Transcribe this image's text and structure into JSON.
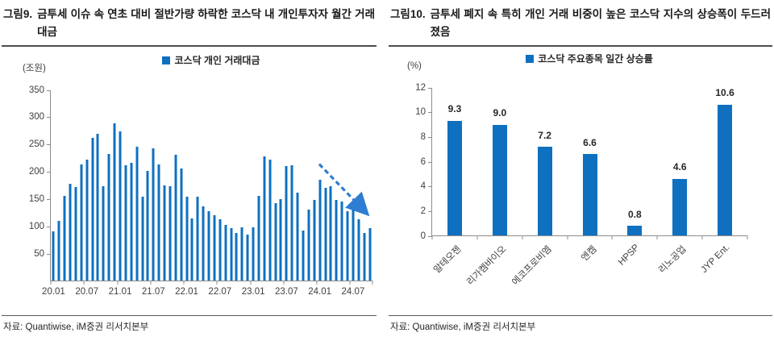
{
  "panels": [
    {
      "title_label": "그림9.",
      "title_text": "금투세 이슈 속 연초 대비 절반가량 하락한 코스닥 내 개인투자자 월간 거래대금",
      "source": "자료: Quantiwise, iM증권 리서치본부"
    },
    {
      "title_label": "그림10.",
      "title_text": "금투세 폐지 속 특히 개인 거래 비중이 높은 코스닥 지수의 상승폭이 두드러졌음",
      "source": "자료: Quantiwise, iM증권 리서치본부"
    }
  ],
  "chart_data": [
    {
      "type": "bar",
      "title": "코스닥 개인 거래대금",
      "legend": "코스닥 개인 거래대금",
      "legend_position": "top-center",
      "unit": "(조원)",
      "ylabel": "(조원)",
      "ylim": [
        0,
        350
      ],
      "yticks": [
        350,
        300,
        250,
        200,
        150,
        100,
        50
      ],
      "grid": false,
      "bar_color": "#0F70C0",
      "arrow_color": "#2E7DD2",
      "annotation": "dashed-decline-arrow",
      "xtick_every": 6,
      "xtick_labels": [
        "20.01",
        "20.07",
        "21.01",
        "21.07",
        "22.01",
        "22.07",
        "23.01",
        "23.07",
        "24.01",
        "24.07"
      ],
      "x": [
        "20.01",
        "20.02",
        "20.03",
        "20.04",
        "20.05",
        "20.06",
        "20.07",
        "20.08",
        "20.09",
        "20.10",
        "20.11",
        "20.12",
        "21.01",
        "21.02",
        "21.03",
        "21.04",
        "21.05",
        "21.06",
        "21.07",
        "21.08",
        "21.09",
        "21.10",
        "21.11",
        "21.12",
        "22.01",
        "22.02",
        "22.03",
        "22.04",
        "22.05",
        "22.06",
        "22.07",
        "22.08",
        "22.09",
        "22.10",
        "22.11",
        "22.12",
        "23.01",
        "23.02",
        "23.03",
        "23.04",
        "23.05",
        "23.06",
        "23.07",
        "23.08",
        "23.09",
        "23.10",
        "23.11",
        "23.12",
        "24.01",
        "24.02",
        "24.03",
        "24.04",
        "24.05",
        "24.06",
        "24.07",
        "24.08",
        "24.09",
        "24.10"
      ],
      "values": [
        90,
        110,
        156,
        178,
        172,
        213,
        222,
        263,
        270,
        173,
        233,
        289,
        275,
        212,
        216,
        246,
        154,
        201,
        243,
        214,
        175,
        174,
        231,
        206,
        154,
        114,
        155,
        136,
        128,
        120,
        113,
        103,
        97,
        88,
        98,
        85,
        98,
        156,
        228,
        223,
        142,
        150,
        210,
        212,
        162,
        92,
        130,
        148,
        185,
        170,
        173,
        149,
        146,
        128,
        130,
        113,
        88,
        97
      ]
    },
    {
      "type": "bar",
      "title": "코스닥 주요종목 일간 상승률",
      "legend": "코스닥 주요종목 일간 상승률",
      "legend_position": "top-center",
      "unit": "(%)",
      "ylabel": "(%)",
      "ylim": [
        0,
        12
      ],
      "yticks": [
        12,
        10,
        8,
        6,
        4,
        2,
        0
      ],
      "grid": false,
      "bar_color": "#0F70C0",
      "data_labels": true,
      "categories": [
        "알테오젠",
        "리가켐바이오",
        "에코프로비엠",
        "엔켐",
        "HPSP",
        "리노공업",
        "JYP Ent."
      ],
      "values": [
        9.3,
        9.0,
        7.2,
        6.6,
        0.8,
        4.6,
        10.6
      ]
    }
  ]
}
